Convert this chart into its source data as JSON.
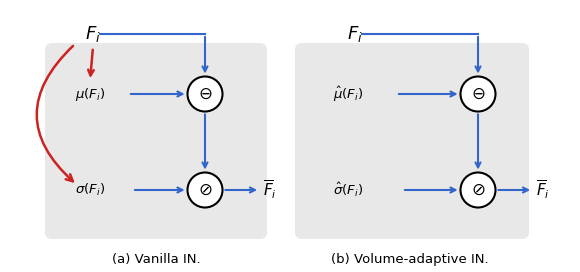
{
  "fig_width": 5.8,
  "fig_height": 2.72,
  "dpi": 100,
  "blue": "#3366cc",
  "red": "#cc2222",
  "box_bg": "#e8e8e8",
  "caption_a": "(a) Vanilla IN.",
  "caption_b": "(b) Volume-adaptive IN.",
  "label_Fi": "$F_i$",
  "label_mu": "$\\mu(F_i)$",
  "label_sigma": "$\\sigma(F_i)$",
  "label_mu_hat": "$\\hat{\\mu}(F_i)$",
  "label_sigma_hat": "$\\hat{\\sigma}(F_i)$",
  "label_Fbar": "$\\overline{F}_i$"
}
